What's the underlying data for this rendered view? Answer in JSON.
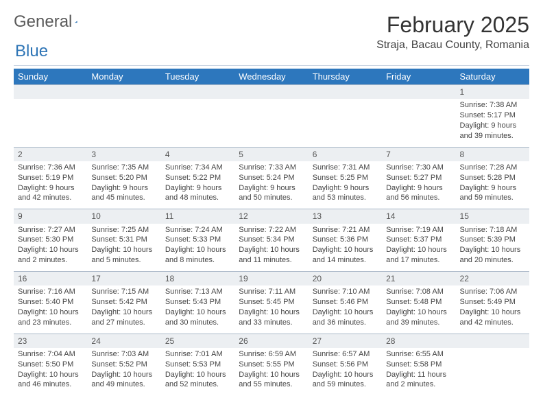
{
  "brand": {
    "part1": "General",
    "part2": "Blue"
  },
  "title": "February 2025",
  "location": "Straja, Bacau County, Romania",
  "colors": {
    "header_bg": "#2d77bd",
    "header_text": "#ffffff",
    "daynum_bg": "#eceff2",
    "row_border": "#aab8c8",
    "divider": "#c8d4e2",
    "logo_blue": "#2e75b6"
  },
  "day_labels": [
    "Sunday",
    "Monday",
    "Tuesday",
    "Wednesday",
    "Thursday",
    "Friday",
    "Saturday"
  ],
  "weeks": [
    {
      "nums": [
        "",
        "",
        "",
        "",
        "",
        "",
        "1"
      ],
      "cells": [
        null,
        null,
        null,
        null,
        null,
        null,
        {
          "sunrise": "Sunrise: 7:38 AM",
          "sunset": "Sunset: 5:17 PM",
          "d1": "Daylight: 9 hours",
          "d2": "and 39 minutes."
        }
      ]
    },
    {
      "nums": [
        "2",
        "3",
        "4",
        "5",
        "6",
        "7",
        "8"
      ],
      "cells": [
        {
          "sunrise": "Sunrise: 7:36 AM",
          "sunset": "Sunset: 5:19 PM",
          "d1": "Daylight: 9 hours",
          "d2": "and 42 minutes."
        },
        {
          "sunrise": "Sunrise: 7:35 AM",
          "sunset": "Sunset: 5:20 PM",
          "d1": "Daylight: 9 hours",
          "d2": "and 45 minutes."
        },
        {
          "sunrise": "Sunrise: 7:34 AM",
          "sunset": "Sunset: 5:22 PM",
          "d1": "Daylight: 9 hours",
          "d2": "and 48 minutes."
        },
        {
          "sunrise": "Sunrise: 7:33 AM",
          "sunset": "Sunset: 5:24 PM",
          "d1": "Daylight: 9 hours",
          "d2": "and 50 minutes."
        },
        {
          "sunrise": "Sunrise: 7:31 AM",
          "sunset": "Sunset: 5:25 PM",
          "d1": "Daylight: 9 hours",
          "d2": "and 53 minutes."
        },
        {
          "sunrise": "Sunrise: 7:30 AM",
          "sunset": "Sunset: 5:27 PM",
          "d1": "Daylight: 9 hours",
          "d2": "and 56 minutes."
        },
        {
          "sunrise": "Sunrise: 7:28 AM",
          "sunset": "Sunset: 5:28 PM",
          "d1": "Daylight: 9 hours",
          "d2": "and 59 minutes."
        }
      ]
    },
    {
      "nums": [
        "9",
        "10",
        "11",
        "12",
        "13",
        "14",
        "15"
      ],
      "cells": [
        {
          "sunrise": "Sunrise: 7:27 AM",
          "sunset": "Sunset: 5:30 PM",
          "d1": "Daylight: 10 hours",
          "d2": "and 2 minutes."
        },
        {
          "sunrise": "Sunrise: 7:25 AM",
          "sunset": "Sunset: 5:31 PM",
          "d1": "Daylight: 10 hours",
          "d2": "and 5 minutes."
        },
        {
          "sunrise": "Sunrise: 7:24 AM",
          "sunset": "Sunset: 5:33 PM",
          "d1": "Daylight: 10 hours",
          "d2": "and 8 minutes."
        },
        {
          "sunrise": "Sunrise: 7:22 AM",
          "sunset": "Sunset: 5:34 PM",
          "d1": "Daylight: 10 hours",
          "d2": "and 11 minutes."
        },
        {
          "sunrise": "Sunrise: 7:21 AM",
          "sunset": "Sunset: 5:36 PM",
          "d1": "Daylight: 10 hours",
          "d2": "and 14 minutes."
        },
        {
          "sunrise": "Sunrise: 7:19 AM",
          "sunset": "Sunset: 5:37 PM",
          "d1": "Daylight: 10 hours",
          "d2": "and 17 minutes."
        },
        {
          "sunrise": "Sunrise: 7:18 AM",
          "sunset": "Sunset: 5:39 PM",
          "d1": "Daylight: 10 hours",
          "d2": "and 20 minutes."
        }
      ]
    },
    {
      "nums": [
        "16",
        "17",
        "18",
        "19",
        "20",
        "21",
        "22"
      ],
      "cells": [
        {
          "sunrise": "Sunrise: 7:16 AM",
          "sunset": "Sunset: 5:40 PM",
          "d1": "Daylight: 10 hours",
          "d2": "and 23 minutes."
        },
        {
          "sunrise": "Sunrise: 7:15 AM",
          "sunset": "Sunset: 5:42 PM",
          "d1": "Daylight: 10 hours",
          "d2": "and 27 minutes."
        },
        {
          "sunrise": "Sunrise: 7:13 AM",
          "sunset": "Sunset: 5:43 PM",
          "d1": "Daylight: 10 hours",
          "d2": "and 30 minutes."
        },
        {
          "sunrise": "Sunrise: 7:11 AM",
          "sunset": "Sunset: 5:45 PM",
          "d1": "Daylight: 10 hours",
          "d2": "and 33 minutes."
        },
        {
          "sunrise": "Sunrise: 7:10 AM",
          "sunset": "Sunset: 5:46 PM",
          "d1": "Daylight: 10 hours",
          "d2": "and 36 minutes."
        },
        {
          "sunrise": "Sunrise: 7:08 AM",
          "sunset": "Sunset: 5:48 PM",
          "d1": "Daylight: 10 hours",
          "d2": "and 39 minutes."
        },
        {
          "sunrise": "Sunrise: 7:06 AM",
          "sunset": "Sunset: 5:49 PM",
          "d1": "Daylight: 10 hours",
          "d2": "and 42 minutes."
        }
      ]
    },
    {
      "nums": [
        "23",
        "24",
        "25",
        "26",
        "27",
        "28",
        ""
      ],
      "cells": [
        {
          "sunrise": "Sunrise: 7:04 AM",
          "sunset": "Sunset: 5:50 PM",
          "d1": "Daylight: 10 hours",
          "d2": "and 46 minutes."
        },
        {
          "sunrise": "Sunrise: 7:03 AM",
          "sunset": "Sunset: 5:52 PM",
          "d1": "Daylight: 10 hours",
          "d2": "and 49 minutes."
        },
        {
          "sunrise": "Sunrise: 7:01 AM",
          "sunset": "Sunset: 5:53 PM",
          "d1": "Daylight: 10 hours",
          "d2": "and 52 minutes."
        },
        {
          "sunrise": "Sunrise: 6:59 AM",
          "sunset": "Sunset: 5:55 PM",
          "d1": "Daylight: 10 hours",
          "d2": "and 55 minutes."
        },
        {
          "sunrise": "Sunrise: 6:57 AM",
          "sunset": "Sunset: 5:56 PM",
          "d1": "Daylight: 10 hours",
          "d2": "and 59 minutes."
        },
        {
          "sunrise": "Sunrise: 6:55 AM",
          "sunset": "Sunset: 5:58 PM",
          "d1": "Daylight: 11 hours",
          "d2": "and 2 minutes."
        },
        null
      ]
    }
  ]
}
